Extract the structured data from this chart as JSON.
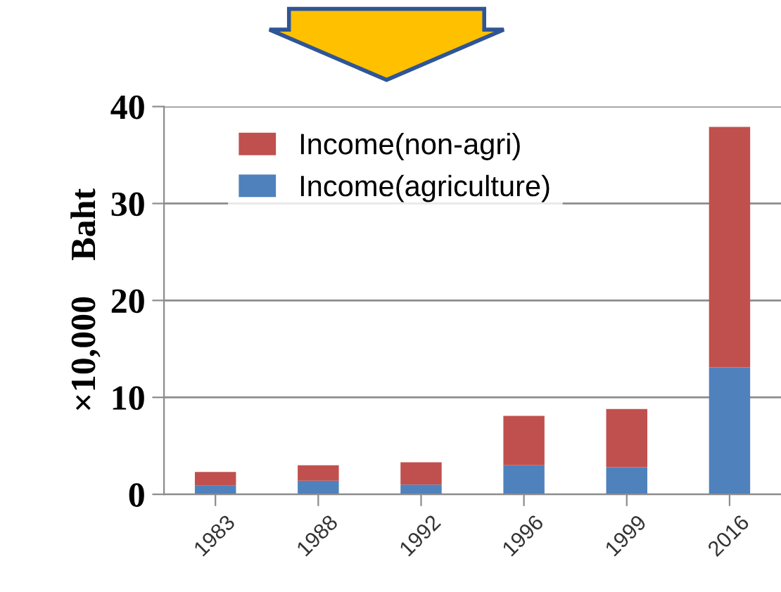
{
  "chart_data": {
    "type": "bar",
    "stacked": true,
    "ylabel": "×10,000    Baht",
    "categories": [
      "1983",
      "1988",
      "1992",
      "1996",
      "1999",
      "2016"
    ],
    "series": [
      {
        "name": "Income(agriculture)",
        "color": "#4f81bd",
        "values": [
          0.9,
          1.4,
          1.0,
          3.0,
          2.8,
          13.1
        ]
      },
      {
        "name": "Income(non-agri)",
        "color": "#c0504d",
        "values": [
          1.4,
          1.6,
          2.3,
          5.1,
          6.0,
          24.8
        ]
      }
    ],
    "ylim": [
      0,
      40
    ],
    "yticks": [
      0,
      10,
      20,
      30,
      40
    ],
    "grid": "y",
    "legend": "top left"
  }
}
